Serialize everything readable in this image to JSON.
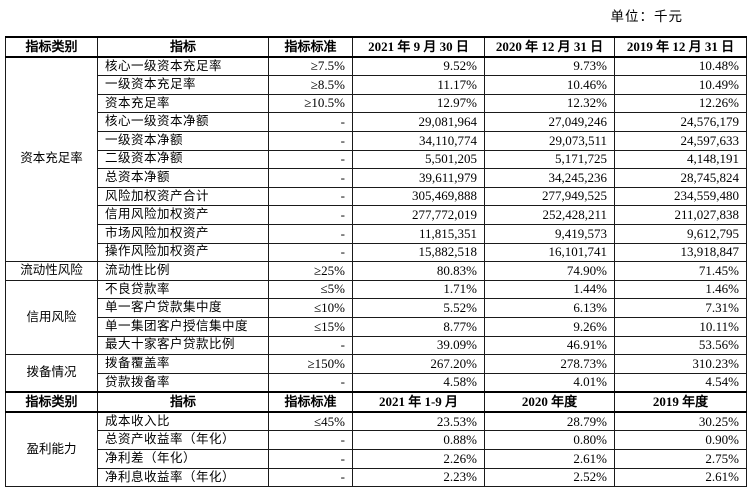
{
  "unit_label": "单位：千元",
  "colors": {
    "text": "#000000",
    "border": "#1a1a1a",
    "header_rule": "#000000",
    "background": "#ffffff"
  },
  "table": {
    "sections": [
      {
        "header": [
          "指标类别",
          "指标",
          "指标标准",
          "2021 年 9 月 30 日",
          "2020 年 12 月 31 日",
          "2019 年 12 月 31 日"
        ],
        "groups": [
          {
            "category": "资本充足率",
            "rows": [
              {
                "indicator": "核心一级资本充足率",
                "standard": "≥7.5%",
                "values": [
                  "9.52%",
                  "9.73%",
                  "10.48%"
                ]
              },
              {
                "indicator": "一级资本充足率",
                "standard": "≥8.5%",
                "values": [
                  "11.17%",
                  "10.46%",
                  "10.49%"
                ]
              },
              {
                "indicator": "资本充足率",
                "standard": "≥10.5%",
                "values": [
                  "12.97%",
                  "12.32%",
                  "12.26%"
                ]
              },
              {
                "indicator": "核心一级资本净额",
                "standard": "-",
                "values": [
                  "29,081,964",
                  "27,049,246",
                  "24,576,179"
                ]
              },
              {
                "indicator": "一级资本净额",
                "standard": "-",
                "values": [
                  "34,110,774",
                  "29,073,511",
                  "24,597,633"
                ]
              },
              {
                "indicator": "二级资本净额",
                "standard": "-",
                "values": [
                  "5,501,205",
                  "5,171,725",
                  "4,148,191"
                ]
              },
              {
                "indicator": "总资本净额",
                "standard": "-",
                "values": [
                  "39,611,979",
                  "34,245,236",
                  "28,745,824"
                ]
              },
              {
                "indicator": "风险加权资产合计",
                "standard": "-",
                "values": [
                  "305,469,888",
                  "277,949,525",
                  "234,559,480"
                ]
              },
              {
                "indicator": "信用风险加权资产",
                "standard": "-",
                "values": [
                  "277,772,019",
                  "252,428,211",
                  "211,027,838"
                ]
              },
              {
                "indicator": "市场风险加权资产",
                "standard": "-",
                "values": [
                  "11,815,351",
                  "9,419,573",
                  "9,612,795"
                ]
              },
              {
                "indicator": "操作风险加权资产",
                "standard": "-",
                "values": [
                  "15,882,518",
                  "16,101,741",
                  "13,918,847"
                ]
              }
            ]
          },
          {
            "category": "流动性风险",
            "rows": [
              {
                "indicator": "流动性比例",
                "standard": "≥25%",
                "values": [
                  "80.83%",
                  "74.90%",
                  "71.45%"
                ]
              }
            ]
          },
          {
            "category": "信用风险",
            "rows": [
              {
                "indicator": "不良贷款率",
                "standard": "≤5%",
                "values": [
                  "1.71%",
                  "1.44%",
                  "1.46%"
                ]
              },
              {
                "indicator": "单一客户贷款集中度",
                "standard": "≤10%",
                "values": [
                  "5.52%",
                  "6.13%",
                  "7.31%"
                ]
              },
              {
                "indicator": "单一集团客户授信集中度",
                "standard": "≤15%",
                "values": [
                  "8.77%",
                  "9.26%",
                  "10.11%"
                ]
              },
              {
                "indicator": "最大十家客户贷款比例",
                "standard": "-",
                "values": [
                  "39.09%",
                  "46.91%",
                  "53.56%"
                ]
              }
            ]
          },
          {
            "category": "拨备情况",
            "rows": [
              {
                "indicator": "拨备覆盖率",
                "standard": "≥150%",
                "values": [
                  "267.20%",
                  "278.73%",
                  "310.23%"
                ]
              },
              {
                "indicator": "贷款拨备率",
                "standard": "-",
                "values": [
                  "4.58%",
                  "4.01%",
                  "4.54%"
                ]
              }
            ]
          }
        ]
      },
      {
        "header": [
          "指标类别",
          "指标",
          "指标标准",
          "2021 年 1-9 月",
          "2020 年度",
          "2019 年度"
        ],
        "groups": [
          {
            "category": "盈利能力",
            "rows": [
              {
                "indicator": "成本收入比",
                "standard": "≤45%",
                "values": [
                  "23.53%",
                  "28.79%",
                  "30.25%"
                ]
              },
              {
                "indicator": "总资产收益率（年化）",
                "standard": "-",
                "values": [
                  "0.88%",
                  "0.80%",
                  "0.90%"
                ]
              },
              {
                "indicator": "净利差（年化）",
                "standard": "-",
                "values": [
                  "2.26%",
                  "2.61%",
                  "2.75%"
                ]
              },
              {
                "indicator": "净利息收益率（年化）",
                "standard": "-",
                "values": [
                  "2.23%",
                  "2.52%",
                  "2.61%"
                ]
              }
            ]
          }
        ]
      }
    ]
  }
}
